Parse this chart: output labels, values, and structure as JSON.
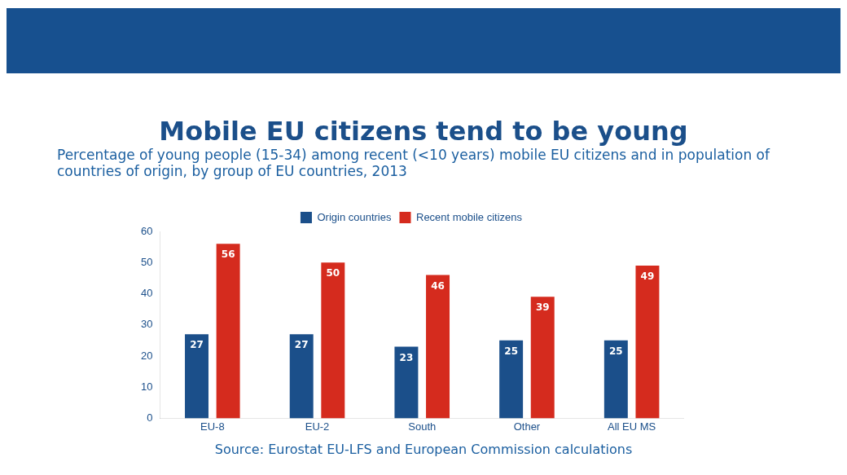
{
  "chart_data": {
    "type": "bar",
    "title": "Mobile EU citizens tend to be young",
    "subtitle": "Percentage of young people (15-34) among recent (<10 years) mobile EU citizens and in population of countries of origin, by group of EU countries, 2013",
    "categories": [
      "EU-8",
      "EU-2",
      "South",
      "Other",
      "All EU MS"
    ],
    "series": [
      {
        "name": "Origin countries",
        "color": "#1b4f8a",
        "values": [
          27,
          27,
          23,
          25,
          25
        ]
      },
      {
        "name": "Recent mobile citizens",
        "color": "#d52b1e",
        "values": [
          56,
          50,
          46,
          39,
          49
        ]
      }
    ],
    "ylim": [
      0,
      60
    ],
    "yticks": [
      0,
      10,
      20,
      30,
      40,
      50,
      60
    ],
    "grid": false,
    "legend": "top",
    "data_labels": true,
    "annotations": [
      "Source: Eurostat EU-LFS and European Commission calculations"
    ]
  }
}
